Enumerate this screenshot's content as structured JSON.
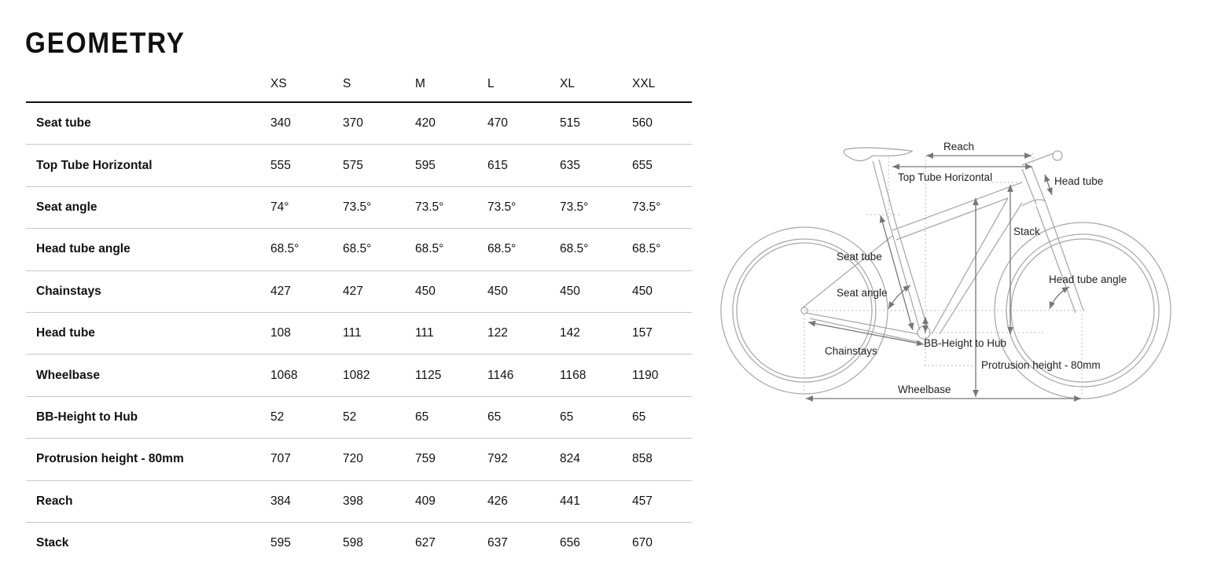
{
  "title": "GEOMETRY",
  "sizes": [
    "XS",
    "S",
    "M",
    "L",
    "XL",
    "XXL"
  ],
  "rows": [
    {
      "label": "Seat tube",
      "values": [
        "340",
        "370",
        "420",
        "470",
        "515",
        "560"
      ]
    },
    {
      "label": "Top Tube Horizontal",
      "values": [
        "555",
        "575",
        "595",
        "615",
        "635",
        "655"
      ]
    },
    {
      "label": "Seat angle",
      "values": [
        "74°",
        "73.5°",
        "73.5°",
        "73.5°",
        "73.5°",
        "73.5°"
      ]
    },
    {
      "label": "Head tube angle",
      "values": [
        "68.5°",
        "68.5°",
        "68.5°",
        "68.5°",
        "68.5°",
        "68.5°"
      ]
    },
    {
      "label": "Chainstays",
      "values": [
        "427",
        "427",
        "450",
        "450",
        "450",
        "450"
      ]
    },
    {
      "label": "Head tube",
      "values": [
        "108",
        "111",
        "111",
        "122",
        "142",
        "157"
      ]
    },
    {
      "label": "Wheelbase",
      "values": [
        "1068",
        "1082",
        "1125",
        "1146",
        "1168",
        "1190"
      ]
    },
    {
      "label": "BB-Height to Hub",
      "values": [
        "52",
        "52",
        "65",
        "65",
        "65",
        "65"
      ]
    },
    {
      "label": "Protrusion height - 80mm",
      "values": [
        "707",
        "720",
        "759",
        "792",
        "824",
        "858"
      ]
    },
    {
      "label": "Reach",
      "values": [
        "384",
        "398",
        "409",
        "426",
        "441",
        "457"
      ]
    },
    {
      "label": "Stack",
      "values": [
        "595",
        "598",
        "627",
        "637",
        "656",
        "670"
      ]
    }
  ],
  "diagram": {
    "reach": "Reach",
    "top_tube": "Top Tube Horizontal",
    "head_tube": "Head tube",
    "stack": "Stack",
    "seat_tube": "Seat tube",
    "head_tube_angle": "Head tube angle",
    "seat_angle": "Seat angle",
    "bb_height": "BB-Height to Hub",
    "chainstays": "Chainstays",
    "protrusion": "Protrusion height - 80mm",
    "wheelbase": "Wheelbase"
  }
}
